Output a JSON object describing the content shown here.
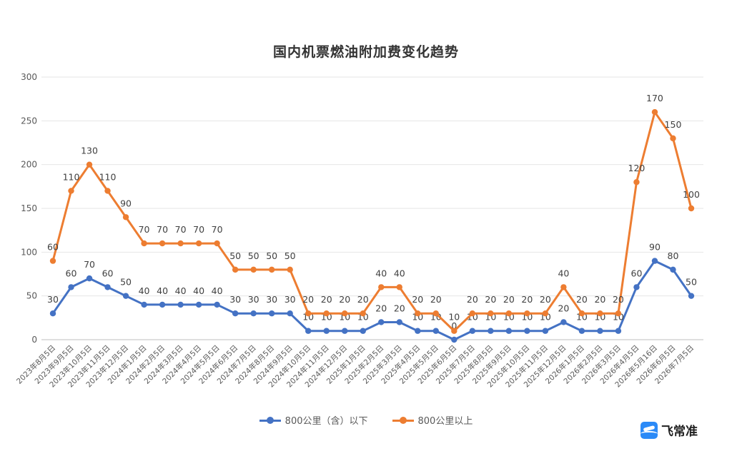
{
  "chart_data": {
    "type": "line",
    "title": "国内机票燃油附加费变化趋势",
    "xlabel": "",
    "ylabel": "",
    "ylim": [
      0,
      300
    ],
    "yticks": [
      "0",
      "50",
      "100",
      "150",
      "200",
      "250",
      "300"
    ],
    "grid": true,
    "legend_position": "bottom",
    "categories": [
      "2023年8月5日",
      "2023年9月5日",
      "2023年10月5日",
      "2023年11月5日",
      "2023年12月5日",
      "2024年1月5日",
      "2024年2月5日",
      "2024年3月5日",
      "2024年4月5日",
      "2024年5月5日",
      "2024年6月5日",
      "2024年7月5日",
      "2024年8月5日",
      "2024年9月5日",
      "2024年10月5日",
      "2024年11月5日",
      "2024年12月5日",
      "2025年1月5日",
      "2025年2月5日",
      "2025年3月5日",
      "2025年4月5日",
      "2025年5月5日",
      "2025年6月5日",
      "2025年7月5日",
      "2025年8月5日",
      "2025年9月5日",
      "2025年10月5日",
      "2025年11月5日",
      "2025年12月5日",
      "2026年1月5日",
      "2026年2月5日",
      "2026年3月5日",
      "2026年4月5日",
      "2026年5月16日",
      "2026年6月5日",
      "2026年7月5日"
    ],
    "series": [
      {
        "name": "800公里（含）以下",
        "color": "#4472c4",
        "values": [
          30,
          60,
          70,
          60,
          50,
          40,
          40,
          40,
          40,
          40,
          30,
          30,
          30,
          30,
          10,
          10,
          10,
          10,
          20,
          20,
          10,
          10,
          0,
          10,
          10,
          10,
          10,
          10,
          20,
          10,
          10,
          10,
          60,
          90,
          80,
          50
        ],
        "labels": [
          "30",
          "60",
          "70",
          "60",
          "50",
          "40",
          "40",
          "40",
          "40",
          "40",
          "30",
          "30",
          "30",
          "30",
          "10",
          "10",
          "10",
          "10",
          "20",
          "20",
          "10",
          "10",
          "0",
          "10",
          "10",
          "10",
          "10",
          "10",
          "20",
          "10",
          "10",
          "10",
          "60",
          "90",
          "80",
          "50"
        ]
      },
      {
        "name": "800公里以上",
        "color": "#ed7d31",
        "values": [
          60,
          110,
          130,
          110,
          90,
          70,
          70,
          70,
          70,
          70,
          50,
          50,
          50,
          50,
          20,
          20,
          20,
          20,
          40,
          40,
          20,
          20,
          10,
          20,
          20,
          20,
          20,
          20,
          40,
          20,
          20,
          20,
          120,
          170,
          150,
          100
        ],
        "plot_values": [
          90,
          170,
          200,
          170,
          140,
          110,
          110,
          110,
          110,
          110,
          80,
          80,
          80,
          80,
          30,
          30,
          30,
          30,
          60,
          60,
          30,
          30,
          10,
          30,
          30,
          30,
          30,
          30,
          60,
          30,
          30,
          30,
          180,
          260,
          230,
          150
        ],
        "labels": [
          "60",
          "110",
          "130",
          "110",
          "90",
          "70",
          "70",
          "70",
          "70",
          "70",
          "50",
          "50",
          "50",
          "50",
          "20",
          "20",
          "20",
          "20",
          "40",
          "40",
          "20",
          "20",
          "10",
          "20",
          "20",
          "20",
          "20",
          "20",
          "40",
          "20",
          "20",
          "20",
          "120",
          "170",
          "150",
          "100"
        ]
      }
    ]
  },
  "legend": {
    "items": [
      {
        "label": "800公里（含）以下",
        "color": "#4472c4"
      },
      {
        "label": "800公里以上",
        "color": "#ed7d31"
      }
    ]
  },
  "brand": {
    "icon": "plane-logo-icon",
    "name": "飞常准"
  }
}
